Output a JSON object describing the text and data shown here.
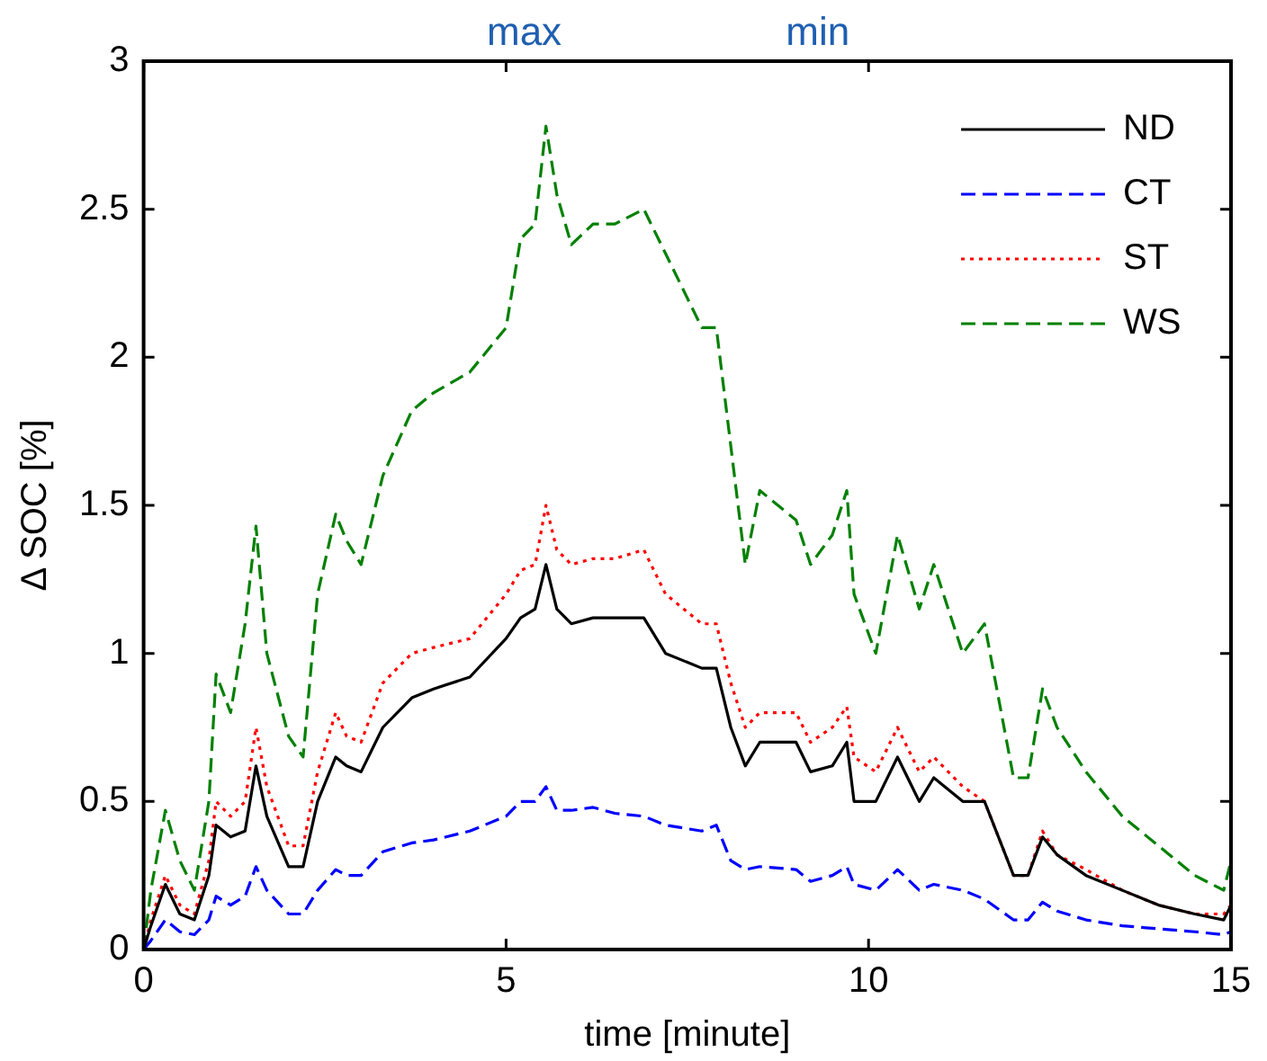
{
  "chart_data": {
    "type": "line",
    "xlabel": "time [minute]",
    "ylabel": "Δ SOC [%]",
    "annotations": [
      "max",
      "min"
    ],
    "x": [
      0,
      0.1,
      0.3,
      0.5,
      0.7,
      0.9,
      1.0,
      1.2,
      1.4,
      1.55,
      1.7,
      2.0,
      2.2,
      2.4,
      2.65,
      2.8,
      3.0,
      3.3,
      3.7,
      4.0,
      4.5,
      5.0,
      5.2,
      5.4,
      5.55,
      5.7,
      5.9,
      6.2,
      6.5,
      6.9,
      7.2,
      7.7,
      7.9,
      8.1,
      8.3,
      8.5,
      9.0,
      9.2,
      9.5,
      9.7,
      9.8,
      10.1,
      10.4,
      10.7,
      10.9,
      11.3,
      11.6,
      12.0,
      12.2,
      12.4,
      12.6,
      13.0,
      13.5,
      14.0,
      14.5,
      14.9,
      15.0
    ],
    "series": [
      {
        "name": "ND",
        "color": "#000000",
        "line_style": "solid",
        "values": [
          0,
          0.08,
          0.22,
          0.12,
          0.1,
          0.25,
          0.42,
          0.38,
          0.4,
          0.62,
          0.45,
          0.28,
          0.28,
          0.5,
          0.65,
          0.62,
          0.6,
          0.75,
          0.85,
          0.88,
          0.92,
          1.05,
          1.12,
          1.15,
          1.3,
          1.15,
          1.1,
          1.12,
          1.12,
          1.12,
          1.0,
          0.95,
          0.95,
          0.75,
          0.62,
          0.7,
          0.7,
          0.6,
          0.62,
          0.7,
          0.5,
          0.5,
          0.65,
          0.5,
          0.58,
          0.5,
          0.5,
          0.25,
          0.25,
          0.38,
          0.32,
          0.25,
          0.2,
          0.15,
          0.12,
          0.1,
          0.15
        ]
      },
      {
        "name": "CT",
        "color": "#0000ff",
        "line_style": "dashed",
        "values": [
          0,
          0.03,
          0.1,
          0.06,
          0.05,
          0.1,
          0.18,
          0.15,
          0.18,
          0.28,
          0.2,
          0.12,
          0.12,
          0.2,
          0.27,
          0.25,
          0.25,
          0.33,
          0.36,
          0.37,
          0.4,
          0.45,
          0.5,
          0.5,
          0.55,
          0.47,
          0.47,
          0.48,
          0.46,
          0.45,
          0.42,
          0.4,
          0.42,
          0.3,
          0.27,
          0.28,
          0.27,
          0.23,
          0.25,
          0.28,
          0.22,
          0.2,
          0.27,
          0.2,
          0.22,
          0.2,
          0.17,
          0.1,
          0.1,
          0.16,
          0.13,
          0.1,
          0.08,
          0.07,
          0.06,
          0.05,
          0.06
        ]
      },
      {
        "name": "ST",
        "color": "#ff0000",
        "line_style": "dotted",
        "values": [
          0,
          0.1,
          0.25,
          0.15,
          0.12,
          0.3,
          0.5,
          0.45,
          0.5,
          0.75,
          0.55,
          0.35,
          0.35,
          0.6,
          0.8,
          0.72,
          0.7,
          0.9,
          1.0,
          1.02,
          1.05,
          1.2,
          1.28,
          1.3,
          1.5,
          1.35,
          1.3,
          1.32,
          1.32,
          1.35,
          1.2,
          1.1,
          1.1,
          0.9,
          0.75,
          0.8,
          0.8,
          0.7,
          0.75,
          0.82,
          0.65,
          0.6,
          0.75,
          0.6,
          0.65,
          0.55,
          0.5,
          0.25,
          0.25,
          0.4,
          0.32,
          0.27,
          0.2,
          0.15,
          0.12,
          0.12,
          0.15
        ]
      },
      {
        "name": "WS",
        "color": "#008000",
        "line_style": "dashed",
        "values": [
          0,
          0.2,
          0.47,
          0.3,
          0.2,
          0.5,
          0.93,
          0.8,
          1.1,
          1.43,
          1.0,
          0.72,
          0.65,
          1.2,
          1.47,
          1.38,
          1.3,
          1.6,
          1.82,
          1.88,
          1.95,
          2.1,
          2.4,
          2.45,
          2.78,
          2.55,
          2.38,
          2.45,
          2.45,
          2.5,
          2.35,
          2.1,
          2.1,
          1.7,
          1.3,
          1.55,
          1.45,
          1.3,
          1.4,
          1.55,
          1.2,
          1.0,
          1.4,
          1.15,
          1.3,
          1.0,
          1.1,
          0.58,
          0.58,
          0.88,
          0.75,
          0.6,
          0.45,
          0.35,
          0.25,
          0.2,
          0.3
        ]
      }
    ],
    "xlim": [
      0,
      15
    ],
    "xticks": [
      0,
      5,
      10,
      15
    ],
    "ylim": [
      0,
      3
    ],
    "yticks": [
      0,
      0.5,
      1,
      1.5,
      2,
      2.5,
      3
    ],
    "grid": false,
    "legend": "top right"
  }
}
